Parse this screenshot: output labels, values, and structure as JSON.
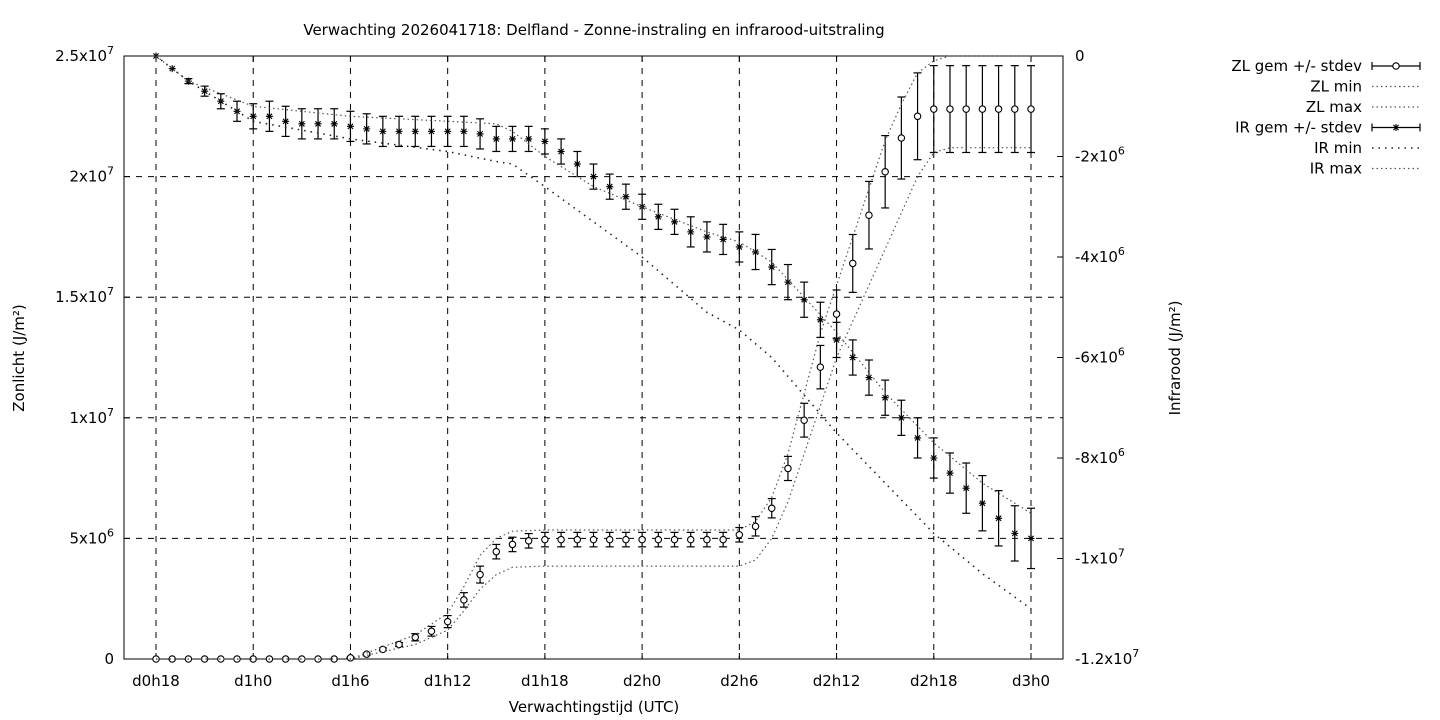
{
  "chart_data": {
    "type": "line",
    "title": "Verwachting 2026041718: Delfland - Zonne-instraling en infrarood-uitstraling",
    "xlabel": "Verwachtingstijd (UTC)",
    "ylabel": "Zonlicht (J/m²)",
    "y2label": "Infrarood (J/m²)",
    "x_ticks": [
      "d0h18",
      "d1h0",
      "d1h6",
      "d1h12",
      "d1h18",
      "d2h0",
      "d2h6",
      "d2h12",
      "d2h18",
      "d3h0"
    ],
    "x_range_hours": [
      18,
      72
    ],
    "ylim": [
      0,
      25000000
    ],
    "y2lim": [
      -12000000,
      0
    ],
    "y_ticks": [
      {
        "value": 0,
        "base": "0",
        "exp": ""
      },
      {
        "value": 5000000,
        "base": "5x10",
        "exp": "6"
      },
      {
        "value": 10000000,
        "base": "1x10",
        "exp": "7"
      },
      {
        "value": 15000000,
        "base": "1.5x10",
        "exp": "7"
      },
      {
        "value": 20000000,
        "base": "2x10",
        "exp": "7"
      },
      {
        "value": 25000000,
        "base": "2.5x10",
        "exp": "7"
      }
    ],
    "y2_ticks": [
      {
        "value": 0,
        "base": "0",
        "exp": ""
      },
      {
        "value": -2000000,
        "base": "-2x10",
        "exp": "6"
      },
      {
        "value": -4000000,
        "base": "-4x10",
        "exp": "6"
      },
      {
        "value": -6000000,
        "base": "-6x10",
        "exp": "6"
      },
      {
        "value": -8000000,
        "base": "-8x10",
        "exp": "6"
      },
      {
        "value": -10000000,
        "base": "-1x10",
        "exp": "7"
      },
      {
        "value": -12000000,
        "base": "-1.2x10",
        "exp": "7"
      }
    ],
    "grid": true,
    "legend_position": "outside-right",
    "series": [
      {
        "name": "ZL gem +/- stdev",
        "axis": "y",
        "marker": "circle",
        "x": [
          18,
          19,
          20,
          21,
          22,
          23,
          24,
          25,
          26,
          27,
          28,
          29,
          30,
          31,
          32,
          33,
          34,
          35,
          36,
          37,
          38,
          39,
          40,
          41,
          42,
          43,
          44,
          45,
          46,
          47,
          48,
          49,
          50,
          51,
          52,
          53,
          54,
          55,
          56,
          57,
          58,
          59,
          60,
          61,
          62,
          63,
          64,
          65,
          66,
          67,
          68,
          69,
          70,
          71,
          72
        ],
        "values": [
          0,
          0,
          0,
          0,
          0,
          0,
          0,
          0,
          0,
          0,
          0,
          0,
          50000,
          200000,
          400000,
          600000,
          900000,
          1150000,
          1550000,
          2450000,
          3500000,
          4450000,
          4750000,
          4900000,
          4950000,
          4950000,
          4950000,
          4950000,
          4950000,
          4950000,
          4950000,
          4950000,
          4950000,
          4950000,
          4950000,
          4950000,
          5150000,
          5500000,
          6250000,
          7900000,
          9900000,
          12100000,
          14300000,
          16400000,
          18400000,
          20200000,
          21600000,
          22500000,
          22800000,
          22800000,
          22800000,
          22800000,
          22800000,
          22800000,
          22800000
        ],
        "stdev": [
          0,
          0,
          0,
          0,
          0,
          0,
          0,
          0,
          0,
          0,
          0,
          0,
          20000,
          40000,
          60000,
          80000,
          150000,
          200000,
          250000,
          300000,
          350000,
          300000,
          300000,
          300000,
          300000,
          300000,
          300000,
          300000,
          300000,
          300000,
          300000,
          300000,
          300000,
          300000,
          300000,
          300000,
          300000,
          400000,
          400000,
          500000,
          700000,
          900000,
          1000000,
          1200000,
          1400000,
          1500000,
          1700000,
          1800000,
          1800000,
          1800000,
          1800000,
          1800000,
          1800000,
          1800000,
          1800000
        ]
      },
      {
        "name": "ZL min",
        "axis": "y",
        "x": [
          18,
          24,
          30,
          34,
          36,
          37,
          38,
          39,
          40,
          42,
          48,
          54,
          55,
          56,
          57,
          58,
          59,
          60,
          61,
          62,
          63,
          64,
          65,
          66,
          67,
          72
        ],
        "values": [
          0,
          0,
          0,
          600000,
          1200000,
          2000000,
          2900000,
          3500000,
          3800000,
          3850000,
          3850000,
          3850000,
          4100000,
          5000000,
          6500000,
          8500000,
          10500000,
          12500000,
          14000000,
          15500000,
          17000000,
          18500000,
          20000000,
          21000000,
          21200000,
          21200000
        ]
      },
      {
        "name": "ZL max",
        "axis": "y",
        "x": [
          18,
          24,
          30,
          34,
          36,
          37,
          38,
          39,
          40,
          42,
          48,
          54,
          55,
          56,
          57,
          58,
          59,
          60,
          61,
          62,
          63,
          64,
          65,
          66,
          67,
          72
        ],
        "values": [
          0,
          0,
          0,
          1000000,
          1900000,
          3000000,
          4300000,
          5000000,
          5300000,
          5350000,
          5350000,
          5350000,
          5700000,
          6700000,
          8500000,
          11000000,
          13500000,
          15500000,
          17500000,
          19500000,
          21500000,
          23000000,
          24300000,
          24800000,
          25000000,
          25000000
        ]
      },
      {
        "name": "IR gem +/- stdev",
        "axis": "y2",
        "marker": "star",
        "x": [
          18,
          19,
          20,
          21,
          22,
          23,
          24,
          25,
          26,
          27,
          28,
          29,
          30,
          31,
          32,
          33,
          34,
          35,
          36,
          37,
          38,
          39,
          40,
          41,
          42,
          43,
          44,
          45,
          46,
          47,
          48,
          49,
          50,
          51,
          52,
          53,
          54,
          55,
          56,
          57,
          58,
          59,
          60,
          61,
          62,
          63,
          64,
          65,
          66,
          67,
          68,
          69,
          70,
          71,
          72
        ],
        "values": [
          0,
          -250000,
          -500000,
          -700000,
          -900000,
          -1100000,
          -1200000,
          -1200000,
          -1300000,
          -1350000,
          -1350000,
          -1350000,
          -1400000,
          -1450000,
          -1500000,
          -1500000,
          -1500000,
          -1500000,
          -1500000,
          -1500000,
          -1550000,
          -1650000,
          -1650000,
          -1650000,
          -1700000,
          -1900000,
          -2150000,
          -2400000,
          -2600000,
          -2800000,
          -3000000,
          -3200000,
          -3300000,
          -3500000,
          -3600000,
          -3650000,
          -3800000,
          -3900000,
          -4200000,
          -4500000,
          -4850000,
          -5250000,
          -5650000,
          -6000000,
          -6400000,
          -6800000,
          -7200000,
          -7600000,
          -8000000,
          -8300000,
          -8600000,
          -8900000,
          -9200000,
          -9500000,
          -9600000
        ],
        "stdev": [
          0,
          0,
          50000,
          100000,
          150000,
          200000,
          250000,
          300000,
          300000,
          300000,
          300000,
          300000,
          300000,
          300000,
          300000,
          300000,
          300000,
          300000,
          300000,
          300000,
          300000,
          250000,
          250000,
          250000,
          250000,
          250000,
          250000,
          250000,
          250000,
          250000,
          250000,
          250000,
          250000,
          300000,
          300000,
          300000,
          300000,
          350000,
          350000,
          350000,
          350000,
          350000,
          350000,
          350000,
          350000,
          350000,
          350000,
          400000,
          400000,
          400000,
          500000,
          550000,
          550000,
          550000,
          600000
        ]
      },
      {
        "name": "IR min",
        "axis": "y2",
        "x": [
          18,
          20,
          24,
          30,
          36,
          39,
          40,
          42,
          45,
          48,
          52,
          54,
          56,
          60,
          63,
          66,
          69,
          72
        ],
        "values": [
          0,
          -500000,
          -1300000,
          -1650000,
          -1900000,
          -2100000,
          -2150000,
          -2600000,
          -3300000,
          -4000000,
          -5100000,
          -5450000,
          -6000000,
          -7500000,
          -8500000,
          -9500000,
          -10300000,
          -11000000
        ]
      },
      {
        "name": "IR max",
        "axis": "y2",
        "x": [
          18,
          20,
          24,
          30,
          36,
          39,
          40,
          42,
          45,
          48,
          52,
          54,
          56,
          60,
          63,
          66,
          69,
          72
        ],
        "values": [
          0,
          -500000,
          -1000000,
          -1200000,
          -1300000,
          -1350000,
          -1500000,
          -2000000,
          -2600000,
          -3000000,
          -3500000,
          -3700000,
          -4100000,
          -5500000,
          -6700000,
          -7700000,
          -8500000,
          -9100000
        ]
      }
    ]
  }
}
